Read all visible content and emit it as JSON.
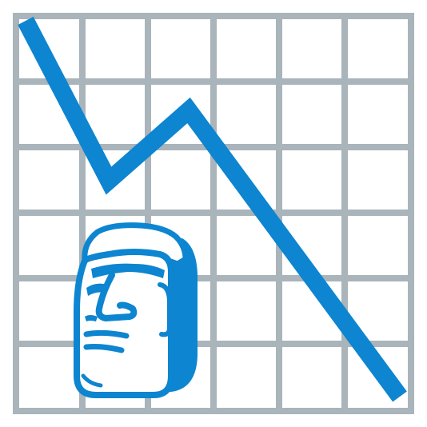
{
  "colors": {
    "background": "#ffffff",
    "grid": "#a9b4bb",
    "trend_line": "#0d85d0",
    "statue_fill": "#0d85d0",
    "statue_face": "#ffffff"
  },
  "icons": {
    "grid": "grid-icon",
    "trend": "declining-trend-line-icon",
    "statue": "moai-head-icon"
  }
}
